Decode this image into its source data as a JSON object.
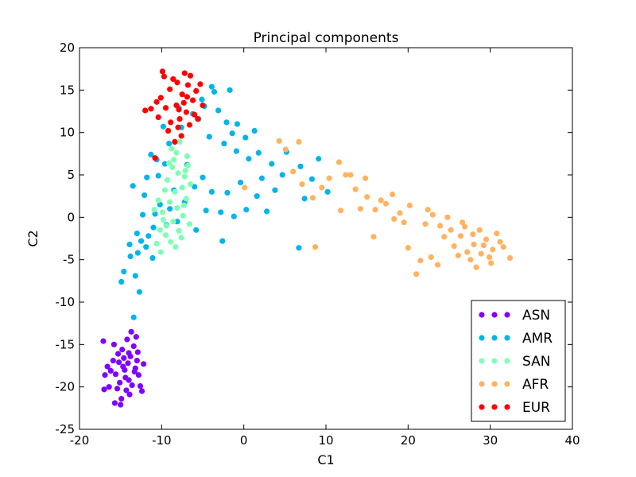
{
  "chart_data": {
    "type": "scatter",
    "title": "Principal components",
    "xlabel": "C1",
    "ylabel": "C2",
    "xlim": [
      -20,
      40
    ],
    "ylim": [
      -25,
      20
    ],
    "xticks": [
      -20,
      -10,
      0,
      10,
      20,
      30,
      40
    ],
    "yticks": [
      -25,
      -20,
      -15,
      -10,
      -5,
      0,
      5,
      10,
      15,
      20
    ],
    "grid": false,
    "legend_position": "bottom-right",
    "series": [
      {
        "name": "ASN",
        "color": "#8000ff",
        "points": [
          [
            -14.5,
            -18.0
          ],
          [
            -15.2,
            -17.1
          ],
          [
            -13.8,
            -16.4
          ],
          [
            -14.0,
            -19.2
          ],
          [
            -15.6,
            -18.5
          ],
          [
            -13.2,
            -17.8
          ],
          [
            -14.8,
            -15.6
          ],
          [
            -15.9,
            -16.9
          ],
          [
            -13.6,
            -19.8
          ],
          [
            -14.3,
            -20.4
          ],
          [
            -12.8,
            -18.6
          ],
          [
            -15.1,
            -19.5
          ],
          [
            -16.2,
            -18.1
          ],
          [
            -14.1,
            -17.2
          ],
          [
            -13.4,
            -15.2
          ],
          [
            -14.6,
            -16.6
          ],
          [
            -15.4,
            -20.2
          ],
          [
            -13.0,
            -16.9
          ],
          [
            -14.9,
            -21.4
          ],
          [
            -15.7,
            -21.9
          ],
          [
            -13.9,
            -20.9
          ],
          [
            -12.6,
            -19.9
          ],
          [
            -16.6,
            -17.6
          ],
          [
            -14.2,
            -14.4
          ],
          [
            -13.7,
            -13.5
          ],
          [
            -17.1,
            -14.6
          ],
          [
            -16.9,
            -18.6
          ],
          [
            -15.0,
            -22.1
          ],
          [
            -12.9,
            -15.9
          ],
          [
            -14.4,
            -18.9
          ],
          [
            -15.3,
            -16.1
          ],
          [
            -13.3,
            -18.2
          ],
          [
            -14.7,
            -17.6
          ],
          [
            -12.2,
            -17.3
          ],
          [
            -16.4,
            -20.0
          ],
          [
            -12.4,
            -20.5
          ],
          [
            -17.0,
            -20.3
          ],
          [
            -13.1,
            -14.1
          ],
          [
            -15.8,
            -15.0
          ],
          [
            -14.0,
            -16.0
          ]
        ]
      },
      {
        "name": "AMR",
        "color": "#00b5eb",
        "points": [
          [
            -8.5,
            3.2
          ],
          [
            -10.2,
            1.5
          ],
          [
            -11.0,
            -1.2
          ],
          [
            -12.5,
            -2.8
          ],
          [
            -13.8,
            -4.6
          ],
          [
            -14.6,
            -6.4
          ],
          [
            -13.2,
            -6.9
          ],
          [
            -14.9,
            -7.6
          ],
          [
            -12.7,
            -8.8
          ],
          [
            -13.4,
            -11.8
          ],
          [
            -11.9,
            -3.5
          ],
          [
            -10.8,
            0.4
          ],
          [
            -12.1,
            2.6
          ],
          [
            -13.5,
            3.7
          ],
          [
            -10.4,
            4.9
          ],
          [
            -9.6,
            6.3
          ],
          [
            -11.3,
            7.4
          ],
          [
            -9.1,
            8.7
          ],
          [
            -7.6,
            10.6
          ],
          [
            -6.2,
            12.2
          ],
          [
            -4.8,
            13.1
          ],
          [
            -3.1,
            12.6
          ],
          [
            -2.1,
            11.2
          ],
          [
            -0.8,
            11.0
          ],
          [
            1.3,
            10.2
          ],
          [
            -1.7,
            15.0
          ],
          [
            -3.6,
            14.8
          ],
          [
            -5.5,
            11.6
          ],
          [
            -4.2,
            9.5
          ],
          [
            -2.4,
            8.7
          ],
          [
            -0.9,
            7.8
          ],
          [
            0.6,
            6.9
          ],
          [
            1.8,
            7.6
          ],
          [
            3.4,
            6.3
          ],
          [
            4.7,
            5.0
          ],
          [
            5.2,
            7.7
          ],
          [
            6.9,
            6.0
          ],
          [
            8.3,
            4.5
          ],
          [
            9.1,
            6.9
          ],
          [
            2.2,
            4.6
          ],
          [
            3.8,
            3.2
          ],
          [
            1.6,
            2.5
          ],
          [
            0.3,
            0.9
          ],
          [
            -1.2,
            0.1
          ],
          [
            -2.6,
            -2.8
          ],
          [
            -5.8,
            -1.5
          ],
          [
            -7.2,
            1.8
          ],
          [
            -6.0,
            3.6
          ],
          [
            -3.9,
            3.0
          ],
          [
            -2.0,
            2.9
          ],
          [
            -0.4,
            4.1
          ],
          [
            2.8,
            0.7
          ],
          [
            6.7,
            -3.6
          ],
          [
            7.4,
            2.2
          ],
          [
            10.2,
            3.0
          ],
          [
            -8.1,
            -0.5
          ],
          [
            -11.6,
            -2.2
          ],
          [
            -12.9,
            -4.2
          ],
          [
            -13.9,
            -3.2
          ],
          [
            -9.8,
            10.7
          ],
          [
            -7.9,
            12.9
          ],
          [
            -5.1,
            13.9
          ],
          [
            -3.9,
            15.4
          ],
          [
            -1.4,
            9.9
          ],
          [
            0.2,
            9.4
          ],
          [
            -10.6,
            6.8
          ],
          [
            -11.8,
            4.7
          ],
          [
            -12.3,
            0.3
          ],
          [
            -11.1,
            -4.8
          ],
          [
            -9.4,
            -0.9
          ],
          [
            -4.6,
            0.8
          ],
          [
            -2.8,
            0.6
          ],
          [
            -6.9,
            6.2
          ],
          [
            -5.0,
            4.7
          ],
          [
            -9.0,
            1.0
          ],
          [
            -13.0,
            -1.9
          ]
        ]
      },
      {
        "name": "SAN",
        "color": "#80ffb4",
        "points": [
          [
            -8.0,
            5.2
          ],
          [
            -7.5,
            3.5
          ],
          [
            -9.0,
            1.8
          ],
          [
            -8.6,
            -0.5
          ],
          [
            -9.5,
            -2.1
          ],
          [
            -10.2,
            -1.5
          ],
          [
            -7.0,
            2.2
          ],
          [
            -8.2,
            7.6
          ],
          [
            -7.8,
            8.9
          ],
          [
            -9.3,
            4.4
          ],
          [
            -6.8,
            6.1
          ],
          [
            -10.6,
            -3.1
          ],
          [
            -9.9,
            0.6
          ],
          [
            -8.9,
            -2.9
          ],
          [
            -7.4,
            0.2
          ],
          [
            -8.4,
            3.0
          ],
          [
            -9.1,
            6.4
          ],
          [
            -7.2,
            4.8
          ],
          [
            -6.6,
            -0.8
          ],
          [
            -10.1,
            -4.1
          ],
          [
            -8.7,
            5.9
          ],
          [
            -7.9,
            -1.6
          ],
          [
            -9.6,
            3.2
          ],
          [
            -8.1,
            1.1
          ],
          [
            -6.9,
            7.2
          ],
          [
            -9.8,
            -0.3
          ],
          [
            -7.6,
            -2.4
          ],
          [
            -8.8,
            8.1
          ],
          [
            -10.4,
            2.0
          ],
          [
            -7.1,
            5.5
          ],
          [
            -8.3,
            -3.5
          ],
          [
            -9.4,
            -1.0
          ],
          [
            -6.5,
            3.9
          ],
          [
            -10.9,
            0.9
          ],
          [
            -8.5,
            6.8
          ],
          [
            -7.3,
            1.4
          ]
        ]
      },
      {
        "name": "AFR",
        "color": "#ffb360",
        "points": [
          [
            28.0,
            -3.2
          ],
          [
            29.5,
            -2.6
          ],
          [
            27.2,
            -4.1
          ],
          [
            30.3,
            -3.8
          ],
          [
            26.4,
            -2.2
          ],
          [
            28.7,
            -1.5
          ],
          [
            31.2,
            -2.9
          ],
          [
            27.6,
            -5.0
          ],
          [
            29.9,
            -4.7
          ],
          [
            25.6,
            -3.4
          ],
          [
            32.4,
            -4.8
          ],
          [
            28.3,
            -5.9
          ],
          [
            30.8,
            -1.9
          ],
          [
            26.9,
            -1.1
          ],
          [
            29.2,
            -3.3
          ],
          [
            27.9,
            -2.0
          ],
          [
            31.6,
            -3.5
          ],
          [
            28.9,
            -4.3
          ],
          [
            26.1,
            -4.5
          ],
          [
            30.1,
            -5.4
          ],
          [
            24.4,
            -2.3
          ],
          [
            23.0,
            0.3
          ],
          [
            22.1,
            -0.8
          ],
          [
            24.8,
            0.0
          ],
          [
            20.2,
            1.4
          ],
          [
            19.5,
            -0.6
          ],
          [
            18.1,
            2.7
          ],
          [
            17.3,
            1.6
          ],
          [
            16.0,
            0.9
          ],
          [
            15.0,
            2.4
          ],
          [
            14.2,
            1.0
          ],
          [
            13.6,
            3.3
          ],
          [
            12.4,
            5.0
          ],
          [
            11.6,
            6.5
          ],
          [
            10.4,
            4.6
          ],
          [
            9.5,
            3.5
          ],
          [
            8.4,
            2.3
          ],
          [
            7.1,
            3.9
          ],
          [
            6.0,
            5.4
          ],
          [
            5.1,
            8.0
          ],
          [
            4.3,
            9.0
          ],
          [
            6.7,
            8.9
          ],
          [
            11.8,
            0.8
          ],
          [
            15.8,
            -2.3
          ],
          [
            20.0,
            -3.6
          ],
          [
            21.5,
            -5.1
          ],
          [
            22.8,
            -4.7
          ],
          [
            23.6,
            -5.6
          ],
          [
            21.0,
            -6.7
          ],
          [
            18.3,
            -0.2
          ],
          [
            16.7,
            2.0
          ],
          [
            19.0,
            0.5
          ],
          [
            8.7,
            -3.5
          ],
          [
            0.1,
            3.5
          ],
          [
            14.8,
            4.6
          ],
          [
            13.0,
            5.0
          ],
          [
            25.2,
            -1.5
          ],
          [
            23.9,
            -1.0
          ],
          [
            22.4,
            0.9
          ],
          [
            26.6,
            -0.6
          ]
        ]
      },
      {
        "name": "EUR",
        "color": "#ff0000",
        "points": [
          [
            -7.5,
            14.5
          ],
          [
            -8.2,
            13.2
          ],
          [
            -6.8,
            15.6
          ],
          [
            -9.0,
            15.1
          ],
          [
            -7.0,
            12.4
          ],
          [
            -8.6,
            16.3
          ],
          [
            -6.2,
            13.8
          ],
          [
            -9.5,
            12.9
          ],
          [
            -7.8,
            11.6
          ],
          [
            -6.5,
            16.7
          ],
          [
            -8.9,
            11.2
          ],
          [
            -5.8,
            14.9
          ],
          [
            -10.1,
            14.1
          ],
          [
            -7.2,
            17.0
          ],
          [
            -9.7,
            16.6
          ],
          [
            -6.0,
            12.1
          ],
          [
            -8.0,
            10.6
          ],
          [
            -5.3,
            15.7
          ],
          [
            -10.6,
            13.6
          ],
          [
            -7.6,
            9.6
          ],
          [
            -8.4,
            8.9
          ],
          [
            -9.2,
            10.2
          ],
          [
            -6.6,
            10.9
          ],
          [
            -5.0,
            13.2
          ],
          [
            -11.3,
            12.8
          ],
          [
            -10.4,
            11.8
          ],
          [
            -9.9,
            17.2
          ],
          [
            -7.3,
            13.5
          ],
          [
            -8.1,
            15.9
          ],
          [
            -6.9,
            14.2
          ],
          [
            -10.8,
            7.0
          ],
          [
            -12.0,
            12.6
          ],
          [
            -5.6,
            11.6
          ],
          [
            -7.9,
            12.7
          ]
        ]
      }
    ]
  }
}
